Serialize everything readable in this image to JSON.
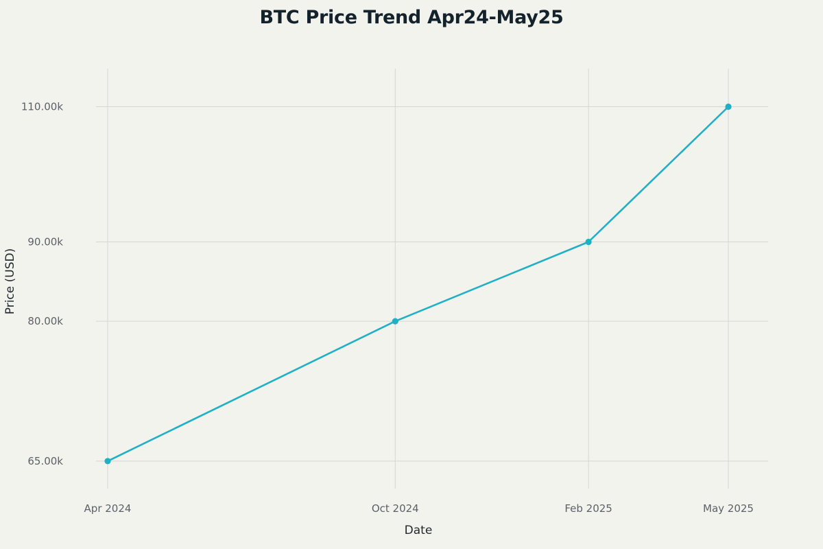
{
  "chart_data": {
    "type": "line",
    "title": "BTC Price Trend Apr24-May25",
    "xlabel": "Date",
    "ylabel": "Price (USD)",
    "x": [
      "2024-04-01",
      "2024-10-01",
      "2025-02-01",
      "2025-05-01"
    ],
    "x_tick_labels": [
      "Apr 2024",
      "Oct 2024",
      "Feb 2025",
      "May 2025"
    ],
    "y_tick_values": [
      65000,
      80000,
      90000,
      110000
    ],
    "y_tick_labels": [
      "65.00k",
      "80.00k",
      "90.00k",
      "110.00k"
    ],
    "y_scale": "log",
    "ylim": [
      62400,
      116400
    ],
    "grid": true,
    "legend": "none",
    "series": [
      {
        "values": [
          65000,
          80000,
          90000,
          110000
        ],
        "color": "#1fb0c6"
      }
    ]
  }
}
